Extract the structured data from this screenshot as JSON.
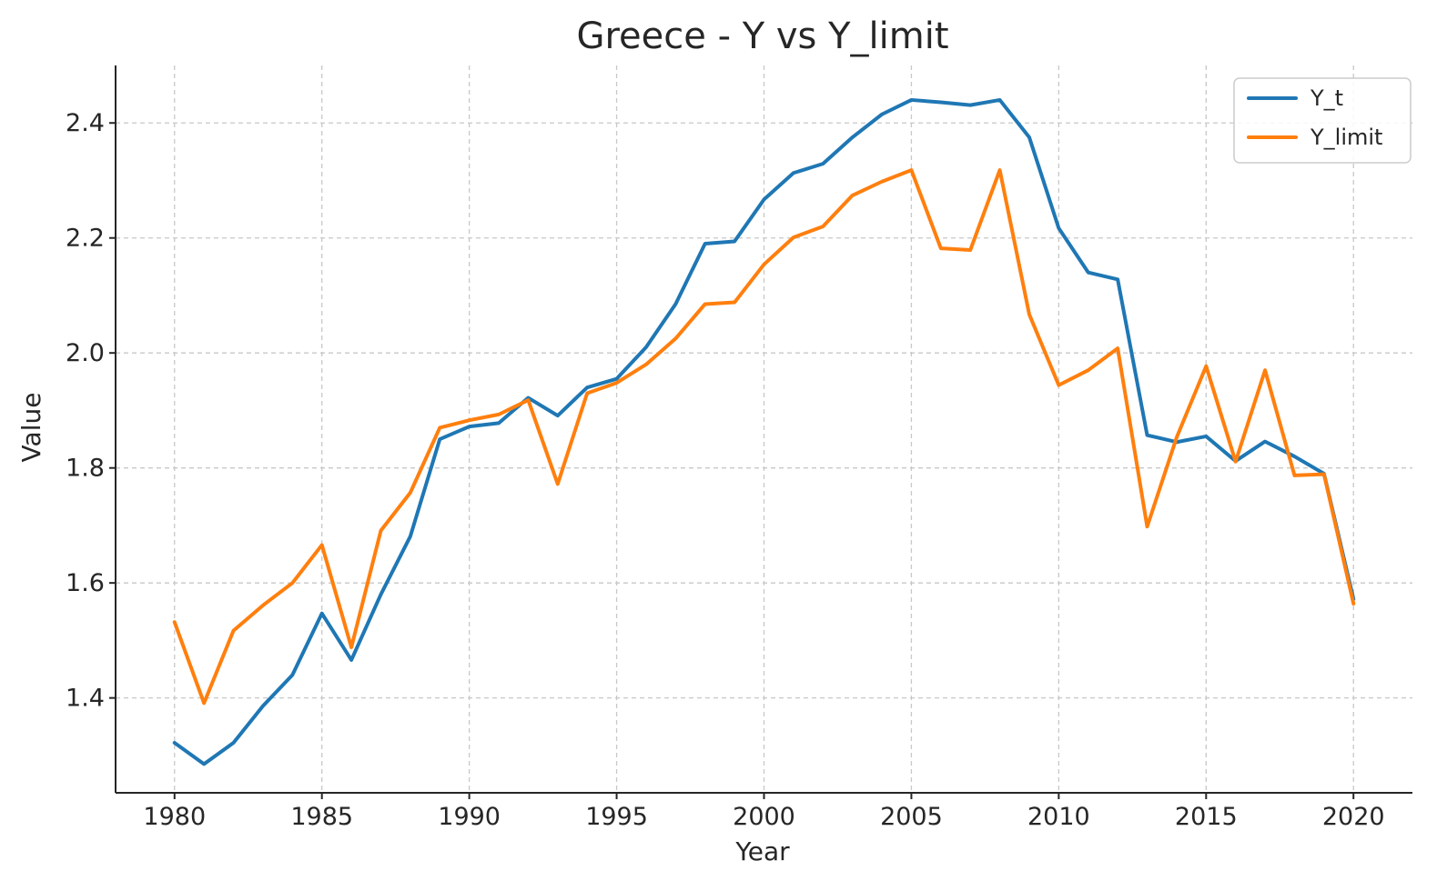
{
  "chart_data": {
    "type": "line",
    "title": "Greece - Y vs Y_limit",
    "xlabel": "Year",
    "ylabel": "Value",
    "xlim": [
      1978,
      2022
    ],
    "ylim": [
      1.235,
      2.5
    ],
    "x_ticks": [
      1980,
      1985,
      1990,
      1995,
      2000,
      2005,
      2010,
      2015,
      2020
    ],
    "y_ticks": [
      1.4,
      1.6,
      1.8,
      2.0,
      2.2,
      2.4
    ],
    "y_tick_labels": [
      "1.4",
      "1.6",
      "1.8",
      "2.0",
      "2.2",
      "2.4"
    ],
    "grid": true,
    "legend_position": "top-right",
    "x": [
      1980,
      1981,
      1982,
      1983,
      1984,
      1985,
      1986,
      1987,
      1988,
      1989,
      1990,
      1991,
      1992,
      1993,
      1994,
      1995,
      1996,
      1997,
      1998,
      1999,
      2000,
      2001,
      2002,
      2003,
      2004,
      2005,
      2006,
      2007,
      2008,
      2009,
      2010,
      2011,
      2012,
      2013,
      2014,
      2015,
      2016,
      2017,
      2018,
      2019,
      2020
    ],
    "series": [
      {
        "name": "Y_t",
        "color": "#1f77b4",
        "values": [
          1.322,
          1.285,
          1.322,
          1.386,
          1.44,
          1.547,
          1.466,
          1.58,
          1.681,
          1.85,
          1.872,
          1.878,
          1.922,
          1.891,
          1.94,
          1.955,
          2.01,
          2.085,
          2.19,
          2.194,
          2.267,
          2.313,
          2.329,
          2.375,
          2.415,
          2.44,
          2.436,
          2.431,
          2.44,
          2.375,
          2.217,
          2.14,
          2.128,
          1.857,
          1.845,
          1.855,
          1.812,
          1.846,
          1.82,
          1.79,
          1.572
        ]
      },
      {
        "name": "Y_limit",
        "color": "#ff7f0e",
        "values": [
          1.532,
          1.391,
          1.517,
          1.561,
          1.6,
          1.666,
          1.488,
          1.691,
          1.757,
          1.87,
          1.883,
          1.893,
          1.918,
          1.772,
          1.93,
          1.948,
          1.98,
          2.025,
          2.085,
          2.088,
          2.154,
          2.201,
          2.22,
          2.274,
          2.298,
          2.318,
          2.182,
          2.179,
          2.318,
          2.067,
          1.944,
          1.97,
          2.008,
          1.698,
          1.853,
          1.977,
          1.811,
          1.97,
          1.787,
          1.789,
          1.564
        ]
      }
    ]
  }
}
